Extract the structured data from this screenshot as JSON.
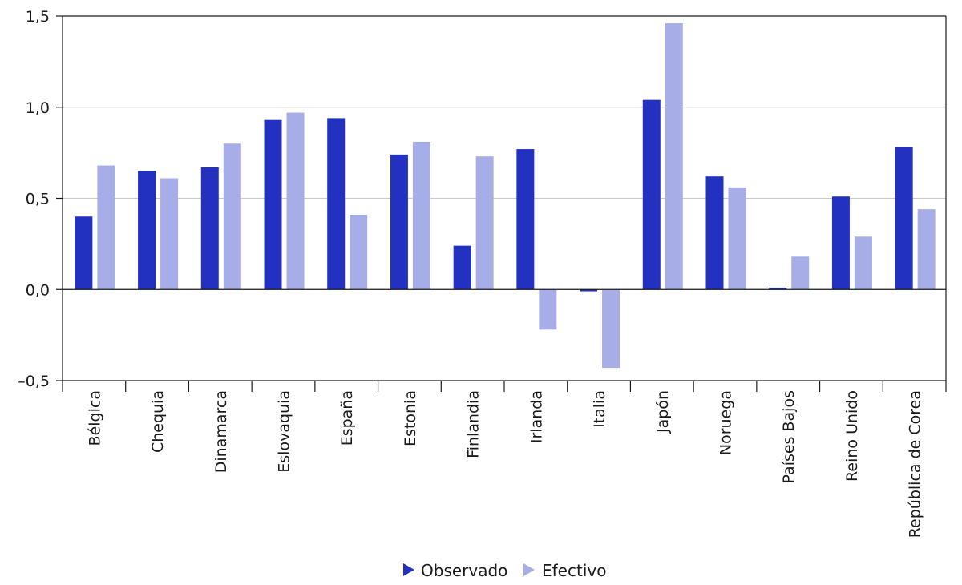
{
  "chart_data": {
    "type": "bar",
    "title": "",
    "xlabel": "",
    "ylabel": "",
    "ylim": [
      -0.5,
      1.5
    ],
    "yticks": [
      -0.5,
      0.0,
      0.5,
      1.0,
      1.5
    ],
    "ytick_labels": [
      "–0,5",
      "0,0",
      "0,5",
      "1,0",
      "1,5"
    ],
    "grid": true,
    "legend_position": "bottom-center",
    "categories": [
      "Bélgica",
      "Chequia",
      "Dinamarca",
      "Eslovaquia",
      "España",
      "Estonia",
      "Finlandia",
      "Irlanda",
      "Italia",
      "Japón",
      "Noruega",
      "Países Bajos",
      "Reino Unido",
      "República de Corea"
    ],
    "series": [
      {
        "name": "Observado",
        "color": "#2231c0",
        "values": [
          0.4,
          0.65,
          0.67,
          0.93,
          0.94,
          0.74,
          0.24,
          0.77,
          -0.01,
          1.04,
          0.62,
          0.01,
          0.51,
          0.78
        ]
      },
      {
        "name": "Efectivo",
        "color": "#a7ade6",
        "values": [
          0.68,
          0.61,
          0.8,
          0.97,
          0.41,
          0.81,
          0.73,
          -0.22,
          -0.43,
          1.46,
          0.56,
          0.18,
          0.29,
          0.44
        ]
      }
    ]
  },
  "colors": {
    "axis": "#1a1a1a",
    "grid": "#c8c8c8"
  }
}
